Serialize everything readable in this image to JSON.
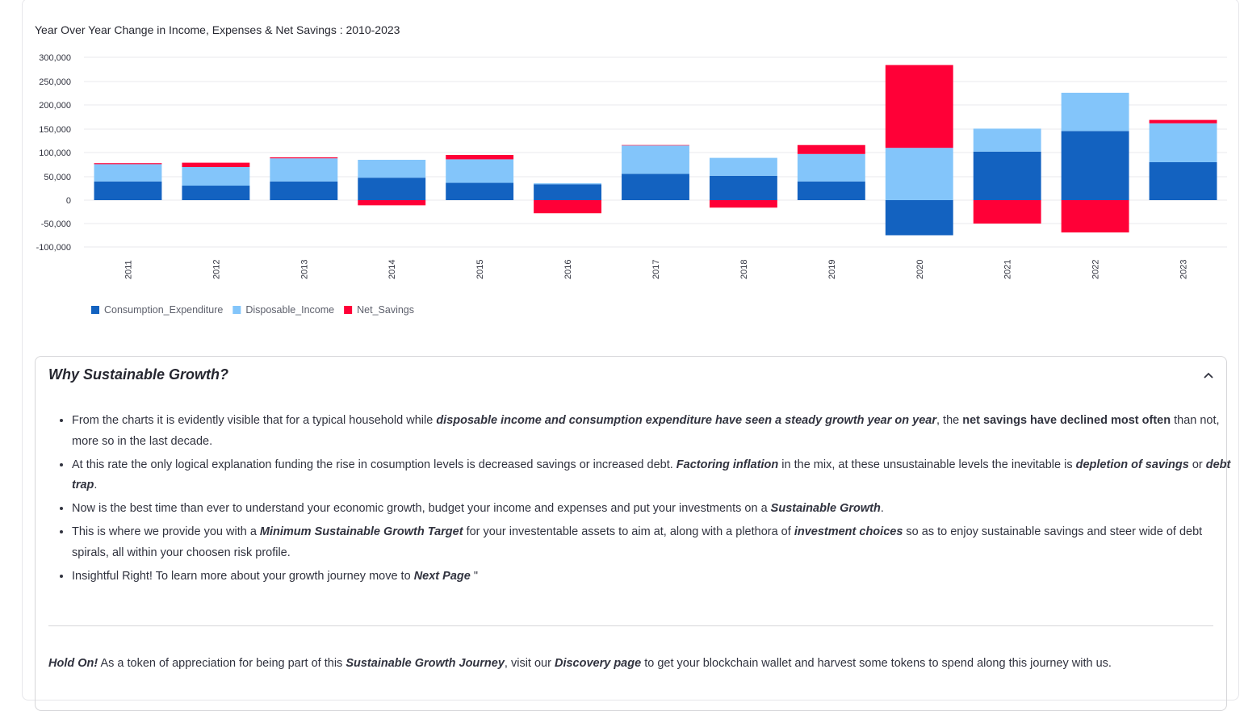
{
  "chart_title": "Year Over Year Change in Income, Expenses & Net Savings : 2010-2023",
  "chart_data": {
    "type": "bar",
    "stacked": true,
    "title": "Year Over Year Change in Income, Expenses & Net Savings : 2010-2023",
    "categories": [
      "2011",
      "2012",
      "2013",
      "2014",
      "2015",
      "2016",
      "2017",
      "2018",
      "2019",
      "2020",
      "2021",
      "2022",
      "2023"
    ],
    "series": [
      {
        "name": "Consumption_Expenditure",
        "color": "#1362c0",
        "values": [
          40000,
          31000,
          40000,
          48000,
          37000,
          34000,
          56000,
          52000,
          40000,
          -75000,
          102000,
          146000,
          80000
        ]
      },
      {
        "name": "Disposable_Income",
        "color": "#83c5fa",
        "values": [
          36000,
          39000,
          48000,
          37000,
          49000,
          2000,
          59000,
          37000,
          57000,
          110000,
          49000,
          80000,
          82000
        ]
      },
      {
        "name": "Net_Savings",
        "color": "#ff0037",
        "values": [
          2000,
          9000,
          2000,
          -11000,
          9000,
          -28000,
          1000,
          -16000,
          19000,
          174000,
          -50000,
          -69000,
          7000
        ]
      }
    ],
    "yticks": [
      300000,
      250000,
      200000,
      150000,
      100000,
      50000,
      0,
      -50000,
      -100000
    ],
    "ytick_labels": [
      "300,000",
      "250,000",
      "200,000",
      "150,000",
      "100,000",
      "50,000",
      "0",
      "-50,000",
      "-100,000"
    ],
    "ylim": [
      -100000,
      300000
    ],
    "grid": true,
    "legend_position": "bottom-left"
  },
  "expander": {
    "title": "Why Sustainable Growth?",
    "chevron_icon": "chevron-up-icon",
    "bullets": [
      {
        "p1": "From the charts it is evidently visible that for a typical household while ",
        "e1": "disposable income and consumption expenditure have seen a steady growth year on year",
        "p2": ", the ",
        "b1": "net savings have declined most often",
        "p3": " than not, more so in the last decade."
      },
      {
        "p1": "At this rate the only logical explanation funding the rise in cosumption levels is decreased savings or increased debt. ",
        "e1": "Factoring inflation",
        "p2": " in the mix, at these unsustainable levels the inevitable is ",
        "e2": "depletion of savings",
        "p3": " or ",
        "e3": "debt trap",
        "p4": "."
      },
      {
        "p1": "Now is the best time than ever to understand your economic growth, budget your income and expenses and put your investments on a ",
        "e1": "Sustainable Growth",
        "p2": "."
      },
      {
        "p1": "This is where we provide you with a ",
        "e1": "Minimum Sustainable Growth Target",
        "p2": " for your investentable assets to aim at, along with a plethora of ",
        "e2": "investment choices",
        "p3": " so as to enjoy sustainable savings and steer wide of debt spirals, all within your choosen risk profile."
      },
      {
        "p1": "Insightful Right! To learn more about your growth journey move to ",
        "e1": "Next Page",
        "p2": " \""
      }
    ],
    "hold": {
      "e1": "Hold On!",
      "p1": " As a token of appreciation for being part of this ",
      "e2": "Sustainable Growth Journey",
      "p2": ", visit our ",
      "e3": "Discovery page",
      "p3": " to get your blockchain wallet and harvest some tokens to spend along this journey with us."
    }
  }
}
